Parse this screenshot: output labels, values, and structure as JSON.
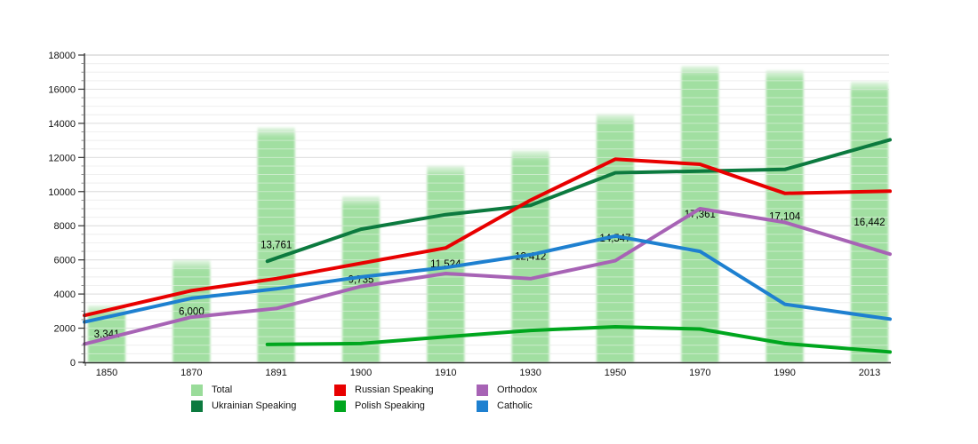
{
  "chart_data": {
    "type": "bar+line",
    "title": "",
    "categories": [
      "1850",
      "1870",
      "1891",
      "1900",
      "1910",
      "1930",
      "1950",
      "1970",
      "1990",
      "2013"
    ],
    "bar_series": {
      "name": "Total",
      "color": "#9ADC9A",
      "values": [
        3341,
        6000,
        13761,
        9735,
        11524,
        12412,
        14547,
        17361,
        17104,
        16442
      ],
      "labels": [
        "3,341",
        "6,000",
        "13,761",
        "9,735",
        "11,524",
        "12,412",
        "14,547",
        "17,361",
        "17,104",
        "16,442"
      ]
    },
    "line_series": [
      {
        "name": "Ukrainian Speaking",
        "color": "#0C7A3F",
        "values": [
          null,
          null,
          6100,
          7800,
          8650,
          9200,
          11100,
          11200,
          11300,
          12700
        ]
      },
      {
        "name": "Russian Speaking",
        "color": "#E80000",
        "values": [
          3050,
          4200,
          4900,
          5800,
          6700,
          9500,
          11900,
          11600,
          9900,
          10000
        ]
      },
      {
        "name": "Polish Speaking",
        "color": "#00A61E",
        "values": [
          null,
          null,
          1050,
          1100,
          1500,
          1870,
          2080,
          1950,
          1100,
          700
        ]
      },
      {
        "name": "Orthodox",
        "color": "#A763B5",
        "values": [
          1400,
          2650,
          3150,
          4450,
          5200,
          4900,
          5950,
          9000,
          8200,
          6700
        ]
      },
      {
        "name": "Catholic",
        "color": "#1E80D0",
        "values": [
          2650,
          3750,
          4300,
          5000,
          5550,
          6300,
          7400,
          6500,
          3400,
          2700
        ]
      }
    ],
    "ylim": [
      0,
      18000
    ],
    "y_major_step": 2000,
    "y_minor_step": 500,
    "y_tick_labels": [
      "0",
      "2000",
      "4000",
      "6000",
      "8000",
      "10000",
      "12000",
      "14000",
      "16000",
      "18000"
    ],
    "grid": true,
    "legend_position": "bottom"
  },
  "legend": {
    "items": [
      {
        "label": "Total",
        "color": "#9ADC9A"
      },
      {
        "label": "Ukrainian Speaking",
        "color": "#0C7A3F"
      },
      {
        "label": "Russian Speaking",
        "color": "#E80000"
      },
      {
        "label": "Polish Speaking",
        "color": "#00A61E"
      },
      {
        "label": "Orthodox",
        "color": "#A763B5"
      },
      {
        "label": "Catholic",
        "color": "#1E80D0"
      }
    ]
  }
}
